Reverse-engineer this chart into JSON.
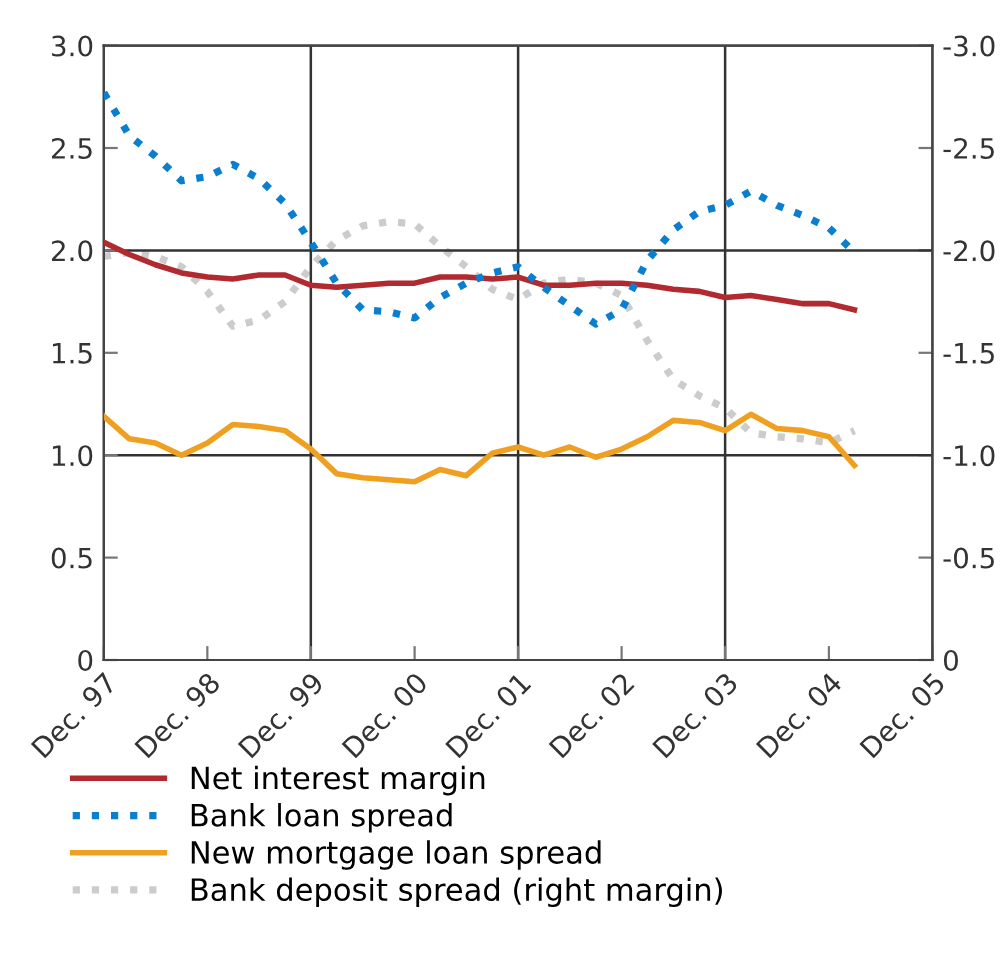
{
  "chart_data": {
    "type": "line",
    "x": [
      "1997-12",
      "1998-03",
      "1998-06",
      "1998-09",
      "1998-12",
      "1999-03",
      "1999-06",
      "1999-09",
      "1999-12",
      "2000-03",
      "2000-06",
      "2000-09",
      "2000-12",
      "2001-03",
      "2001-06",
      "2001-09",
      "2001-12",
      "2002-03",
      "2002-06",
      "2002-09",
      "2002-12",
      "2003-03",
      "2003-06",
      "2003-09",
      "2003-12",
      "2004-03",
      "2004-06",
      "2004-09",
      "2004-12",
      "2005-03"
    ],
    "series": [
      {
        "name": "Net interest margin",
        "color": "#b02a30",
        "line_style": "solid",
        "values": [
          2.04,
          1.98,
          1.93,
          1.89,
          1.87,
          1.86,
          1.88,
          1.88,
          1.83,
          1.82,
          1.83,
          1.84,
          1.84,
          1.87,
          1.87,
          1.86,
          1.87,
          1.83,
          1.83,
          1.84,
          1.84,
          1.83,
          1.81,
          1.8,
          1.77,
          1.78,
          1.76,
          1.74,
          1.74,
          1.71
        ]
      },
      {
        "name": "Bank loan spread",
        "color": "#0a7fcf",
        "line_style": "dotted",
        "values": [
          2.77,
          2.56,
          2.46,
          2.34,
          2.36,
          2.42,
          2.35,
          2.23,
          2.04,
          1.84,
          1.71,
          1.7,
          1.67,
          1.77,
          1.84,
          1.89,
          1.92,
          1.82,
          1.73,
          1.64,
          1.71,
          1.95,
          2.1,
          2.19,
          2.22,
          2.29,
          2.22,
          2.17,
          2.11,
          1.99
        ]
      },
      {
        "name": "New mortgage loan spread",
        "color": "#f0a020",
        "line_style": "solid",
        "values": [
          1.19,
          1.08,
          1.06,
          1.0,
          1.06,
          1.15,
          1.14,
          1.12,
          1.03,
          0.91,
          0.89,
          0.88,
          0.87,
          0.93,
          0.9,
          1.01,
          1.04,
          1.0,
          1.04,
          0.99,
          1.03,
          1.09,
          1.17,
          1.16,
          1.12,
          1.2,
          1.13,
          1.12,
          1.09,
          0.95
        ]
      },
      {
        "name": "Bank deposit spread (right margin)",
        "color": "#cccccc",
        "line_style": "dotted",
        "axis": "y2",
        "values": [
          -1.97,
          -1.99,
          -1.97,
          -1.92,
          -1.8,
          -1.63,
          -1.66,
          -1.75,
          -1.92,
          -2.05,
          -2.12,
          -2.14,
          -2.13,
          -2.02,
          -1.92,
          -1.81,
          -1.76,
          -1.84,
          -1.86,
          -1.84,
          -1.78,
          -1.56,
          -1.37,
          -1.29,
          -1.23,
          -1.11,
          -1.09,
          -1.08,
          -1.06,
          -1.12
        ]
      }
    ],
    "xlim": [
      "1997-12",
      "2005-12"
    ],
    "xticks": [
      {
        "value": "1997-12",
        "label": "Dec. 97"
      },
      {
        "value": "1998-12",
        "label": "Dec. 98"
      },
      {
        "value": "1999-12",
        "label": "Dec. 99"
      },
      {
        "value": "2000-12",
        "label": "Dec. 00"
      },
      {
        "value": "2001-12",
        "label": "Dec. 01"
      },
      {
        "value": "2002-12",
        "label": "Dec. 02"
      },
      {
        "value": "2003-12",
        "label": "Dec. 03"
      },
      {
        "value": "2004-12",
        "label": "Dec. 04"
      },
      {
        "value": "2005-12",
        "label": "Dec. 05"
      }
    ],
    "ylim": [
      0,
      3.0
    ],
    "yticks": [
      {
        "value": 0,
        "label": "0"
      },
      {
        "value": 0.5,
        "label": "0.5"
      },
      {
        "value": 1.0,
        "label": "1.0"
      },
      {
        "value": 1.5,
        "label": "1.5"
      },
      {
        "value": 2.0,
        "label": "2.0"
      },
      {
        "value": 2.5,
        "label": "2.5"
      },
      {
        "value": 3.0,
        "label": "3.0"
      }
    ],
    "y2lim": [
      0,
      -3.0
    ],
    "y2ticks": [
      {
        "value": 0,
        "label": "0"
      },
      {
        "value": -0.5,
        "label": "-0.5"
      },
      {
        "value": -1.0,
        "label": "-1.0"
      },
      {
        "value": -1.5,
        "label": "-1.5"
      },
      {
        "value": -2.0,
        "label": "-2.0"
      },
      {
        "value": -2.5,
        "label": "-2.5"
      },
      {
        "value": -3.0,
        "label": "-3.0"
      }
    ],
    "grid": true,
    "legend": "bottom"
  }
}
